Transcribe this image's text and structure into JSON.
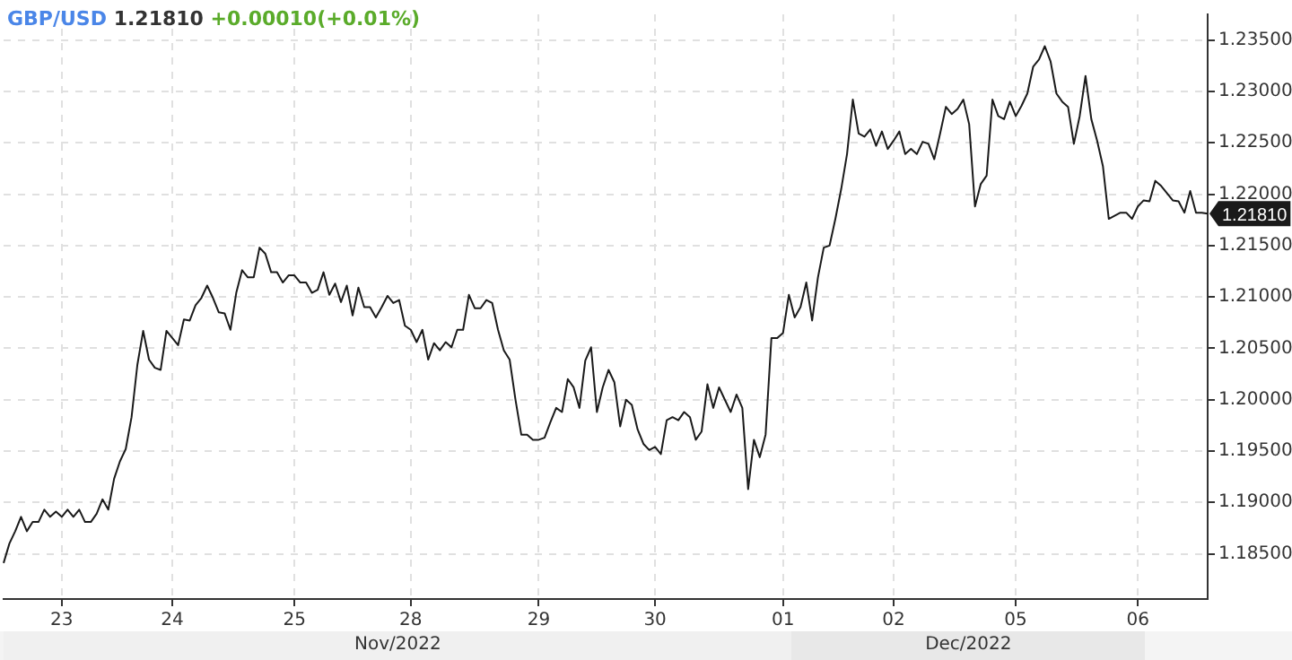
{
  "chart_data": {
    "type": "line",
    "title": "GBP/USD",
    "subtitle": "1.21810 +0.00010(+0.01%)",
    "annotations": [
      "Nov/2022",
      "Dec/2022",
      "1.21810"
    ],
    "categories": [
      null,
      null,
      null,
      null,
      null,
      null,
      null,
      null,
      null,
      null,
      "23",
      null,
      null,
      null,
      null,
      null,
      null,
      null,
      null,
      null,
      null,
      null,
      null,
      null,
      null,
      null,
      null,
      null,
      null,
      "24",
      null,
      null,
      null,
      null,
      null,
      null,
      null,
      null,
      null,
      null,
      null,
      null,
      null,
      null,
      null,
      null,
      null,
      null,
      null,
      null,
      "25",
      null,
      null,
      null,
      null,
      null,
      null,
      null,
      null,
      null,
      null,
      null,
      null,
      null,
      null,
      null,
      null,
      null,
      null,
      null,
      "28",
      null,
      null,
      null,
      null,
      null,
      null,
      null,
      null,
      null,
      null,
      null,
      null,
      null,
      null,
      null,
      null,
      null,
      null,
      null,
      null,
      null,
      "29",
      null,
      null,
      null,
      null,
      null,
      null,
      null,
      null,
      null,
      null,
      null,
      null,
      null,
      null,
      null,
      null,
      null,
      null,
      null,
      "30",
      null,
      null,
      null,
      null,
      null,
      null,
      null,
      null,
      null,
      null,
      null,
      null,
      null,
      null,
      null,
      null,
      null,
      null,
      null,
      null,
      null,
      "01",
      null,
      null,
      null,
      null,
      null,
      null,
      null,
      null,
      null,
      null,
      null,
      null,
      null,
      null,
      null,
      null,
      null,
      null,
      "02",
      null,
      null,
      null,
      null,
      null,
      null,
      null,
      null,
      null,
      null,
      null,
      null,
      null,
      null,
      null,
      null,
      null,
      null,
      null,
      null,
      "05",
      null,
      null,
      null,
      null,
      null,
      null,
      null,
      null,
      null,
      null,
      null,
      null,
      null,
      null,
      null,
      null,
      null,
      null,
      null,
      null,
      "06",
      null,
      null,
      null,
      null,
      null,
      null,
      null,
      null,
      null,
      null,
      null,
      null
    ],
    "series": [
      {
        "color": "#1a1a1a",
        "values": [
          1.1841,
          1.186,
          1.1872,
          1.1886,
          1.1872,
          1.1881,
          1.1881,
          1.1893,
          1.1886,
          1.1891,
          1.1886,
          1.1893,
          1.1886,
          1.1893,
          1.1881,
          1.1881,
          1.1889,
          1.1903,
          1.1893,
          1.1923,
          1.194,
          1.1952,
          1.1983,
          1.2034,
          1.2067,
          1.2039,
          1.2031,
          1.2029,
          1.2067,
          1.206,
          1.2053,
          1.2078,
          1.2077,
          1.2092,
          1.2099,
          1.2111,
          1.2099,
          1.2085,
          1.2084,
          1.2068,
          1.2104,
          1.2126,
          1.2119,
          1.2119,
          1.2148,
          1.2142,
          1.2124,
          1.2124,
          1.2114,
          1.2121,
          1.2121,
          1.2114,
          1.2114,
          1.2104,
          1.2107,
          1.2124,
          1.2102,
          1.2113,
          1.2095,
          1.2111,
          1.2082,
          1.2109,
          1.209,
          1.209,
          1.208,
          1.209,
          1.2101,
          1.2094,
          1.2097,
          1.2072,
          1.2068,
          1.2056,
          1.2068,
          1.2039,
          1.2055,
          1.2048,
          1.2056,
          1.2051,
          1.2068,
          1.2068,
          1.2102,
          1.2089,
          1.2089,
          1.2097,
          1.2094,
          1.2068,
          1.2048,
          1.2039,
          1.2,
          1.1966,
          1.1966,
          1.1961,
          1.1961,
          1.1963,
          1.1978,
          1.1992,
          1.1988,
          1.202,
          1.2012,
          1.1992,
          1.2038,
          1.2051,
          1.1988,
          1.2012,
          1.2029,
          1.2017,
          1.1974,
          1.2,
          1.1995,
          1.1971,
          1.1957,
          1.1951,
          1.1954,
          1.1947,
          1.198,
          1.1983,
          1.198,
          1.1988,
          1.1983,
          1.1961,
          1.1969,
          1.2015,
          1.1992,
          1.2012,
          1.2,
          1.1988,
          1.2005,
          1.1992,
          1.1913,
          1.1961,
          1.1944,
          1.1966,
          1.206,
          1.206,
          1.2065,
          1.2102,
          1.208,
          1.209,
          1.2114,
          1.2077,
          1.2119,
          1.2148,
          1.215,
          1.2176,
          1.2205,
          1.2239,
          1.2292,
          1.2259,
          1.2256,
          1.2263,
          1.2247,
          1.2261,
          1.2244,
          1.2252,
          1.2261,
          1.2239,
          1.2244,
          1.2239,
          1.2251,
          1.2249,
          1.2234,
          1.2259,
          1.2285,
          1.2278,
          1.2283,
          1.2292,
          1.2268,
          1.2188,
          1.221,
          1.2218,
          1.2292,
          1.2276,
          1.2273,
          1.229,
          1.2276,
          1.2286,
          1.2298,
          1.2324,
          1.2331,
          1.2344,
          1.2329,
          1.2298,
          1.229,
          1.2285,
          1.2249,
          1.2276,
          1.2315,
          1.2273,
          1.2252,
          1.2227,
          1.2176,
          1.2179,
          1.2182,
          1.2182,
          1.2176,
          1.2188,
          1.2194,
          1.2193,
          1.2213,
          1.2208,
          1.2201,
          1.2194,
          1.2193,
          1.2182,
          1.2203,
          1.2182,
          1.2182,
          1.2181
        ]
      }
    ],
    "ylim": [
      1.1806,
      1.2375
    ],
    "yticks": [
      {
        "value": 1.185,
        "label": "1.18500"
      },
      {
        "value": 1.19,
        "label": "1.19000"
      },
      {
        "value": 1.195,
        "label": "1.19500"
      },
      {
        "value": 1.2,
        "label": "1.20000"
      },
      {
        "value": 1.205,
        "label": "1.20500"
      },
      {
        "value": 1.21,
        "label": "1.21000"
      },
      {
        "value": 1.215,
        "label": "1.21500"
      },
      {
        "value": 1.22,
        "label": "1.22000"
      },
      {
        "value": 1.225,
        "label": "1.22500"
      },
      {
        "value": 1.23,
        "label": "1.23000"
      },
      {
        "value": 1.235,
        "label": "1.23500"
      }
    ],
    "grid": true,
    "legend": false,
    "marker": "none",
    "line_style": "solid"
  }
}
